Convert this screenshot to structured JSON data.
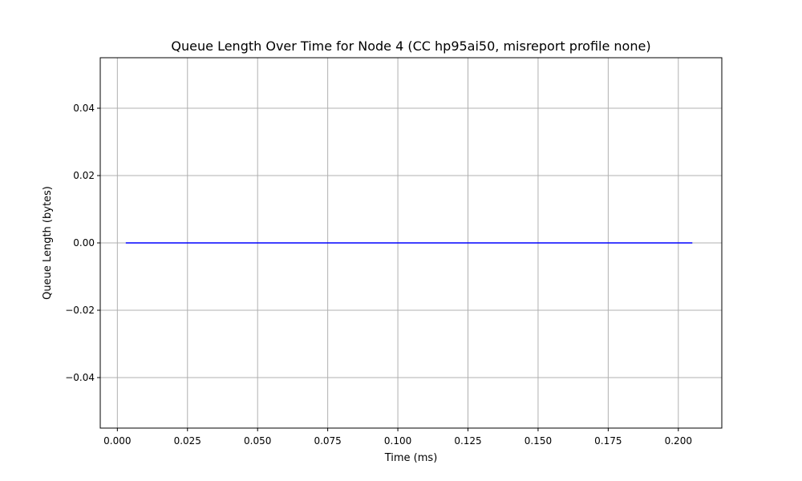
{
  "chart_data": {
    "type": "line",
    "title": "Queue Length Over Time for Node 4 (CC hp95ai50, misreport profile none)",
    "xlabel": "Time (ms)",
    "ylabel": "Queue Length (bytes)",
    "xlim": [
      -0.0061,
      0.2155
    ],
    "ylim": [
      -0.055,
      0.055
    ],
    "xticks": [
      0.0,
      0.025,
      0.05,
      0.075,
      0.1,
      0.125,
      0.15,
      0.175,
      0.2
    ],
    "xtick_labels": [
      "0.000",
      "0.025",
      "0.050",
      "0.075",
      "0.100",
      "0.125",
      "0.150",
      "0.175",
      "0.200"
    ],
    "yticks": [
      0.04,
      0.02,
      0.0,
      -0.02,
      -0.04
    ],
    "ytick_labels": [
      "0.04",
      "0.02",
      "0.00",
      "−0.02",
      "−0.04"
    ],
    "grid": true,
    "series": [
      {
        "color": "#0000ff",
        "x": [
          0.003,
          0.205
        ],
        "y": [
          0.0,
          0.0
        ]
      }
    ],
    "colors": {
      "grid": "#b0b0b0",
      "axes": "#000000",
      "line": "#0000ff"
    }
  }
}
